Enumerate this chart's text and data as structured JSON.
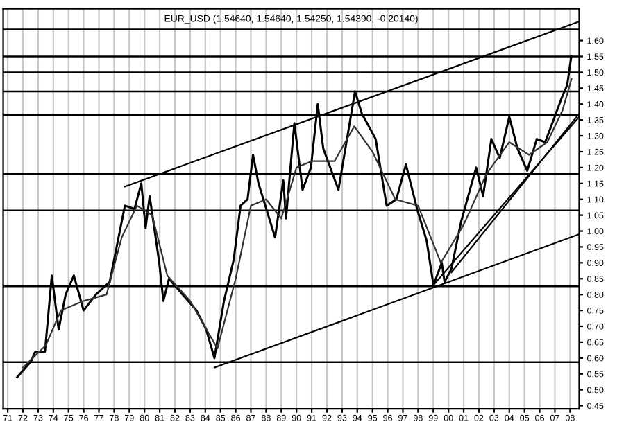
{
  "chart_data": {
    "type": "line",
    "title": "EUR_USD (1.54640, 1.54640, 1.54250, 1.54390, -0.20140)",
    "xlim": [
      1970.7,
      2008.6
    ],
    "ylim": [
      0.44,
      1.7
    ],
    "xticks": [
      {
        "value": 1971,
        "label": "71"
      },
      {
        "value": 1972,
        "label": "72"
      },
      {
        "value": 1973,
        "label": "73"
      },
      {
        "value": 1974,
        "label": "74"
      },
      {
        "value": 1975,
        "label": "75"
      },
      {
        "value": 1976,
        "label": "76"
      },
      {
        "value": 1977,
        "label": "77"
      },
      {
        "value": 1978,
        "label": "78"
      },
      {
        "value": 1979,
        "label": "79"
      },
      {
        "value": 1980,
        "label": "80"
      },
      {
        "value": 1981,
        "label": "81"
      },
      {
        "value": 1982,
        "label": "82"
      },
      {
        "value": 1983,
        "label": "83"
      },
      {
        "value": 1984,
        "label": "84"
      },
      {
        "value": 1985,
        "label": "85"
      },
      {
        "value": 1986,
        "label": "86"
      },
      {
        "value": 1987,
        "label": "87"
      },
      {
        "value": 1988,
        "label": "88"
      },
      {
        "value": 1989,
        "label": "89"
      },
      {
        "value": 1990,
        "label": "90"
      },
      {
        "value": 1991,
        "label": "91"
      },
      {
        "value": 1992,
        "label": "92"
      },
      {
        "value": 1993,
        "label": "93"
      },
      {
        "value": 1994,
        "label": "94"
      },
      {
        "value": 1995,
        "label": "95"
      },
      {
        "value": 1996,
        "label": "96"
      },
      {
        "value": 1997,
        "label": "97"
      },
      {
        "value": 1998,
        "label": "98"
      },
      {
        "value": 1999,
        "label": "99"
      },
      {
        "value": 2000,
        "label": "00"
      },
      {
        "value": 2001,
        "label": "01"
      },
      {
        "value": 2002,
        "label": "02"
      },
      {
        "value": 2003,
        "label": "03"
      },
      {
        "value": 2004,
        "label": "04"
      },
      {
        "value": 2005,
        "label": "05"
      },
      {
        "value": 2006,
        "label": "06"
      },
      {
        "value": 2007,
        "label": "07"
      },
      {
        "value": 2008,
        "label": "08"
      }
    ],
    "yticks": [
      {
        "value": 0.45,
        "label": "0.45"
      },
      {
        "value": 0.5,
        "label": "0.50"
      },
      {
        "value": 0.55,
        "label": "0.55"
      },
      {
        "value": 0.6,
        "label": "0.60"
      },
      {
        "value": 0.65,
        "label": "0.65"
      },
      {
        "value": 0.7,
        "label": "0.70"
      },
      {
        "value": 0.75,
        "label": "0.75"
      },
      {
        "value": 0.8,
        "label": "0.80"
      },
      {
        "value": 0.85,
        "label": "0.85"
      },
      {
        "value": 0.9,
        "label": "0.90"
      },
      {
        "value": 0.95,
        "label": "0.95"
      },
      {
        "value": 1.0,
        "label": "1.00"
      },
      {
        "value": 1.05,
        "label": "1.05"
      },
      {
        "value": 1.1,
        "label": "1.10"
      },
      {
        "value": 1.15,
        "label": "1.15"
      },
      {
        "value": 1.2,
        "label": "1.20"
      },
      {
        "value": 1.25,
        "label": "1.25"
      },
      {
        "value": 1.3,
        "label": "1.30"
      },
      {
        "value": 1.35,
        "label": "1.35"
      },
      {
        "value": 1.4,
        "label": "1.40"
      },
      {
        "value": 1.45,
        "label": "1.45"
      },
      {
        "value": 1.5,
        "label": "1.50"
      },
      {
        "value": 1.55,
        "label": "1.55"
      },
      {
        "value": 1.6,
        "label": "1.60"
      }
    ],
    "grid": "x",
    "legend": false,
    "ref_lines": [
      {
        "axis": "y",
        "value": 1.635,
        "color": "#000000"
      },
      {
        "axis": "y",
        "value": 1.55,
        "color": "#000000"
      },
      {
        "axis": "y",
        "value": 1.5,
        "color": "#000000"
      },
      {
        "axis": "y",
        "value": 1.44,
        "color": "#000000"
      },
      {
        "axis": "y",
        "value": 1.365,
        "color": "#000000"
      },
      {
        "axis": "y",
        "value": 1.18,
        "color": "#000000"
      },
      {
        "axis": "y",
        "value": 1.065,
        "color": "#000000"
      },
      {
        "axis": "y",
        "value": 0.826,
        "color": "#000000"
      },
      {
        "axis": "y",
        "value": 0.587,
        "color": "#000000"
      }
    ],
    "series": [
      {
        "color": "#000000",
        "x": [
          1971.63,
          1972.54,
          1972.81,
          1973.45,
          1973.9,
          1974.35,
          1974.81,
          1975.35,
          1975.99,
          1976.8,
          1977.71,
          1978.25,
          1978.71,
          1979.34,
          1979.79,
          1980.07,
          1980.34,
          1980.97,
          1981.24,
          1981.61,
          1982.51,
          1983.42,
          1984.06,
          1984.6,
          1985.23,
          1985.87,
          1986.32,
          1986.78,
          1987.14,
          1987.5,
          1987.95,
          1988.59,
          1989.13,
          1989.31,
          1989.86,
          1990.4,
          1990.95,
          1991.4,
          1991.76,
          1992.76,
          1993.85,
          1994.3,
          1995.21,
          1995.93,
          1996.57,
          1997.2,
          1997.93,
          1998.56,
          1999.01,
          1999.56,
          1999.74,
          2000.19,
          2000.83,
          2001.82,
          2002.28,
          2002.82,
          2003.37,
          2004.0,
          2004.54,
          2005.18,
          2005.81,
          2006.36,
          2006.99,
          2007.45,
          2007.81,
          2008.08
        ],
        "values": [
          0.54,
          0.59,
          0.62,
          0.62,
          0.86,
          0.69,
          0.8,
          0.86,
          0.75,
          0.8,
          0.84,
          0.97,
          1.08,
          1.07,
          1.15,
          1.01,
          1.11,
          0.9,
          0.78,
          0.85,
          0.8,
          0.75,
          0.69,
          0.6,
          0.78,
          0.91,
          1.08,
          1.1,
          1.24,
          1.15,
          1.08,
          0.98,
          1.16,
          1.04,
          1.34,
          1.13,
          1.2,
          1.4,
          1.26,
          1.13,
          1.44,
          1.37,
          1.29,
          1.08,
          1.1,
          1.21,
          1.07,
          0.97,
          0.83,
          0.9,
          0.84,
          0.88,
          1.03,
          1.2,
          1.11,
          1.29,
          1.23,
          1.36,
          1.26,
          1.19,
          1.29,
          1.28,
          1.36,
          1.42,
          1.46,
          1.55
        ]
      },
      {
        "color": "#333333",
        "x": [
          1972,
          1973.5,
          1974.5,
          1976,
          1977.5,
          1978.5,
          1979.5,
          1980.5,
          1981.5,
          1983,
          1984.8,
          1986,
          1987,
          1988,
          1989,
          1990,
          1991,
          1992.5,
          1993.8,
          1995,
          1996.5,
          1998,
          1999.5,
          2001,
          2002.5,
          2004,
          2005.3,
          2006.5,
          2007.5,
          2008.1
        ],
        "values": [
          0.57,
          0.64,
          0.75,
          0.78,
          0.8,
          0.98,
          1.08,
          1.05,
          0.86,
          0.78,
          0.63,
          0.85,
          1.08,
          1.1,
          1.04,
          1.2,
          1.22,
          1.22,
          1.33,
          1.25,
          1.1,
          1.08,
          0.9,
          1.02,
          1.18,
          1.28,
          1.24,
          1.28,
          1.38,
          1.48
        ]
      },
      {
        "color": "#000000",
        "x": [
          1978.71,
          2008.6
        ],
        "values": [
          1.14,
          1.66
        ]
      },
      {
        "color": "#000000",
        "x": [
          1984.6,
          2008.6
        ],
        "values": [
          0.57,
          0.99
        ]
      },
      {
        "color": "#000000",
        "x": [
          1999.01,
          2008.6
        ],
        "values": [
          0.83,
          1.36
        ]
      },
      {
        "color": "#000000",
        "x": [
          2000.19,
          2008.6
        ],
        "values": [
          0.87,
          1.37
        ]
      }
    ]
  }
}
